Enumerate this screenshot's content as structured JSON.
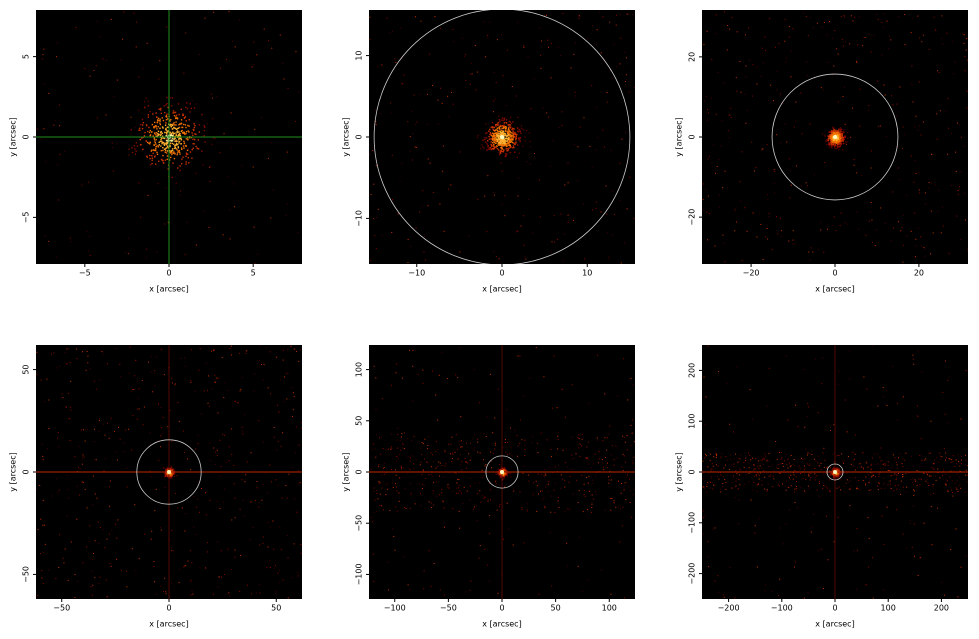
{
  "chart_data": [
    {
      "type": "image",
      "xlabel": "x [arcsec]",
      "ylabel": "y [arcsec]",
      "xlim": [
        -7.9,
        7.9
      ],
      "ylim": [
        -7.9,
        7.9
      ],
      "xticks": [
        {
          "value": -5,
          "label": "−5"
        },
        0,
        5
      ],
      "yticks": [
        {
          "value": -5,
          "label": "−5"
        },
        0,
        5
      ],
      "crosshair": {
        "x": 0,
        "y": 0,
        "color": "#1f8f1f"
      }
    },
    {
      "type": "image",
      "xlabel": "x [arcsec]",
      "ylabel": "y [arcsec]",
      "xlim": [
        -15.6,
        15.6
      ],
      "ylim": [
        -15.6,
        15.6
      ],
      "xticks": [
        {
          "value": -10,
          "label": "−10"
        },
        0,
        10
      ],
      "yticks": [
        {
          "value": -10,
          "label": "−10"
        },
        0,
        10
      ],
      "circle_radius": 15
    },
    {
      "type": "image",
      "xlabel": "x [arcsec]",
      "ylabel": "y [arcsec]",
      "xlim": [
        -31.7,
        31.7
      ],
      "ylim": [
        -31.7,
        31.7
      ],
      "xticks": [
        {
          "value": -20,
          "label": "−20"
        },
        0,
        20
      ],
      "yticks": [
        {
          "value": -20,
          "label": "−20"
        },
        0,
        20
      ],
      "circle_radius": 15
    },
    {
      "type": "image",
      "xlabel": "x [arcsec]",
      "ylabel": "y [arcsec]",
      "xlim": [
        -62,
        62
      ],
      "ylim": [
        -62,
        62
      ],
      "xticks": [
        {
          "value": -50,
          "label": "−50"
        },
        0,
        50
      ],
      "yticks": [
        {
          "value": -50,
          "label": "−50"
        },
        0,
        50
      ],
      "circle_radius": 15
    },
    {
      "type": "image",
      "xlabel": "x [arcsec]",
      "ylabel": "y [arcsec]",
      "xlim": [
        -124,
        124
      ],
      "ylim": [
        -124,
        124
      ],
      "xticks": [
        {
          "value": -100,
          "label": "−100"
        },
        {
          "value": -50,
          "label": "−50"
        },
        0,
        50,
        100
      ],
      "yticks": [
        {
          "value": -100,
          "label": "−100"
        },
        {
          "value": -50,
          "label": "−50"
        },
        0,
        50,
        100
      ],
      "circle_radius": 15
    },
    {
      "type": "image",
      "xlabel": "x [arcsec]",
      "ylabel": "y [arcsec]",
      "xlim": [
        -250,
        250
      ],
      "ylim": [
        -250,
        250
      ],
      "xticks": [
        {
          "value": -200,
          "label": "−200"
        },
        {
          "value": -100,
          "label": "−100"
        },
        0,
        100,
        200
      ],
      "yticks": [
        {
          "value": -200,
          "label": "−200"
        },
        {
          "value": -100,
          "label": "−100"
        },
        0,
        100,
        200
      ],
      "circle_radius": 15
    }
  ]
}
